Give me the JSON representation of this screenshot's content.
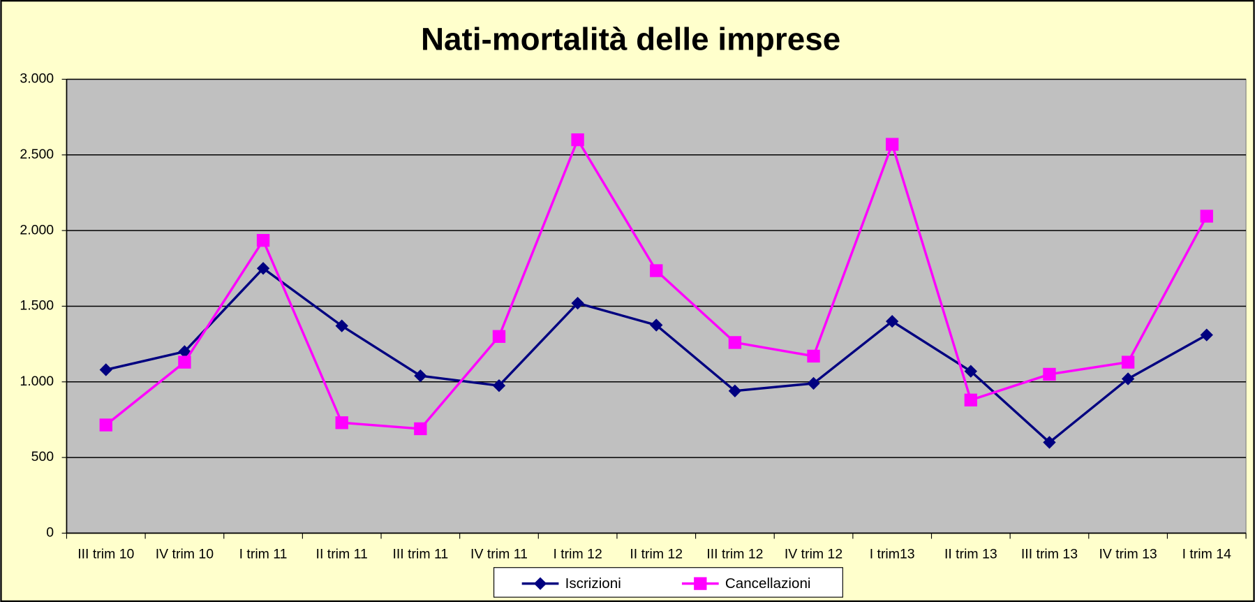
{
  "chart_data": {
    "type": "line",
    "title": "Nati-mortalità delle imprese",
    "categories": [
      "III trim 10",
      "IV trim 10",
      "I trim 11",
      "II trim 11",
      "III trim 11",
      "IV trim 11",
      "I trim 12",
      "II trim 12",
      "III trim 12",
      "IV trim 12",
      "I trim13",
      "II trim 13",
      "III trim 13",
      "IV trim 13",
      "I trim 14"
    ],
    "series": [
      {
        "name": "Iscrizioni",
        "color": "#000080",
        "marker": "diamond",
        "values": [
          1080,
          1200,
          1750,
          1370,
          1040,
          975,
          1520,
          1375,
          940,
          990,
          1400,
          1070,
          600,
          1020,
          1310
        ]
      },
      {
        "name": "Cancellazioni",
        "color": "#ff00ff",
        "marker": "square",
        "values": [
          715,
          1130,
          1935,
          730,
          690,
          1300,
          2600,
          1735,
          1260,
          1170,
          2570,
          880,
          1050,
          1130,
          2095
        ]
      }
    ],
    "ylim": [
      0,
      3000
    ],
    "yticks": [
      0,
      500,
      {
        "value": 1000,
        "label": "1.000"
      },
      {
        "value": 1500,
        "label": "1.500"
      },
      {
        "value": 2000,
        "label": "2.000"
      },
      {
        "value": 2500,
        "label": "2.500"
      },
      {
        "value": 3000,
        "label": "3.000"
      }
    ],
    "grid": true,
    "legend": "bottom"
  }
}
